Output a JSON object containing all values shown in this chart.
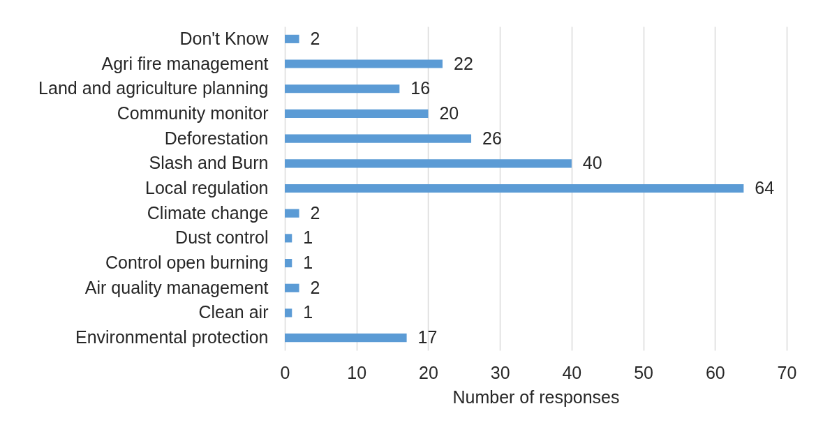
{
  "chart_data": {
    "type": "bar",
    "orientation": "horizontal",
    "categories": [
      "Don't Know",
      "Agri fire management",
      "Land and agriculture planning",
      "Community monitor",
      "Deforestation",
      "Slash and Burn",
      "Local regulation",
      "Climate change",
      "Dust control",
      "Control open burning",
      "Air quality management",
      "Clean air",
      "Environmental protection"
    ],
    "values": [
      2,
      22,
      16,
      20,
      26,
      40,
      64,
      2,
      1,
      1,
      2,
      1,
      17
    ],
    "color": "#5b9bd5",
    "xlabel": "Number of responses",
    "xlim": [
      0,
      70
    ],
    "xticks": [
      0,
      10,
      20,
      30,
      40,
      50,
      60,
      70
    ],
    "grid": "x",
    "data_labels": true
  }
}
